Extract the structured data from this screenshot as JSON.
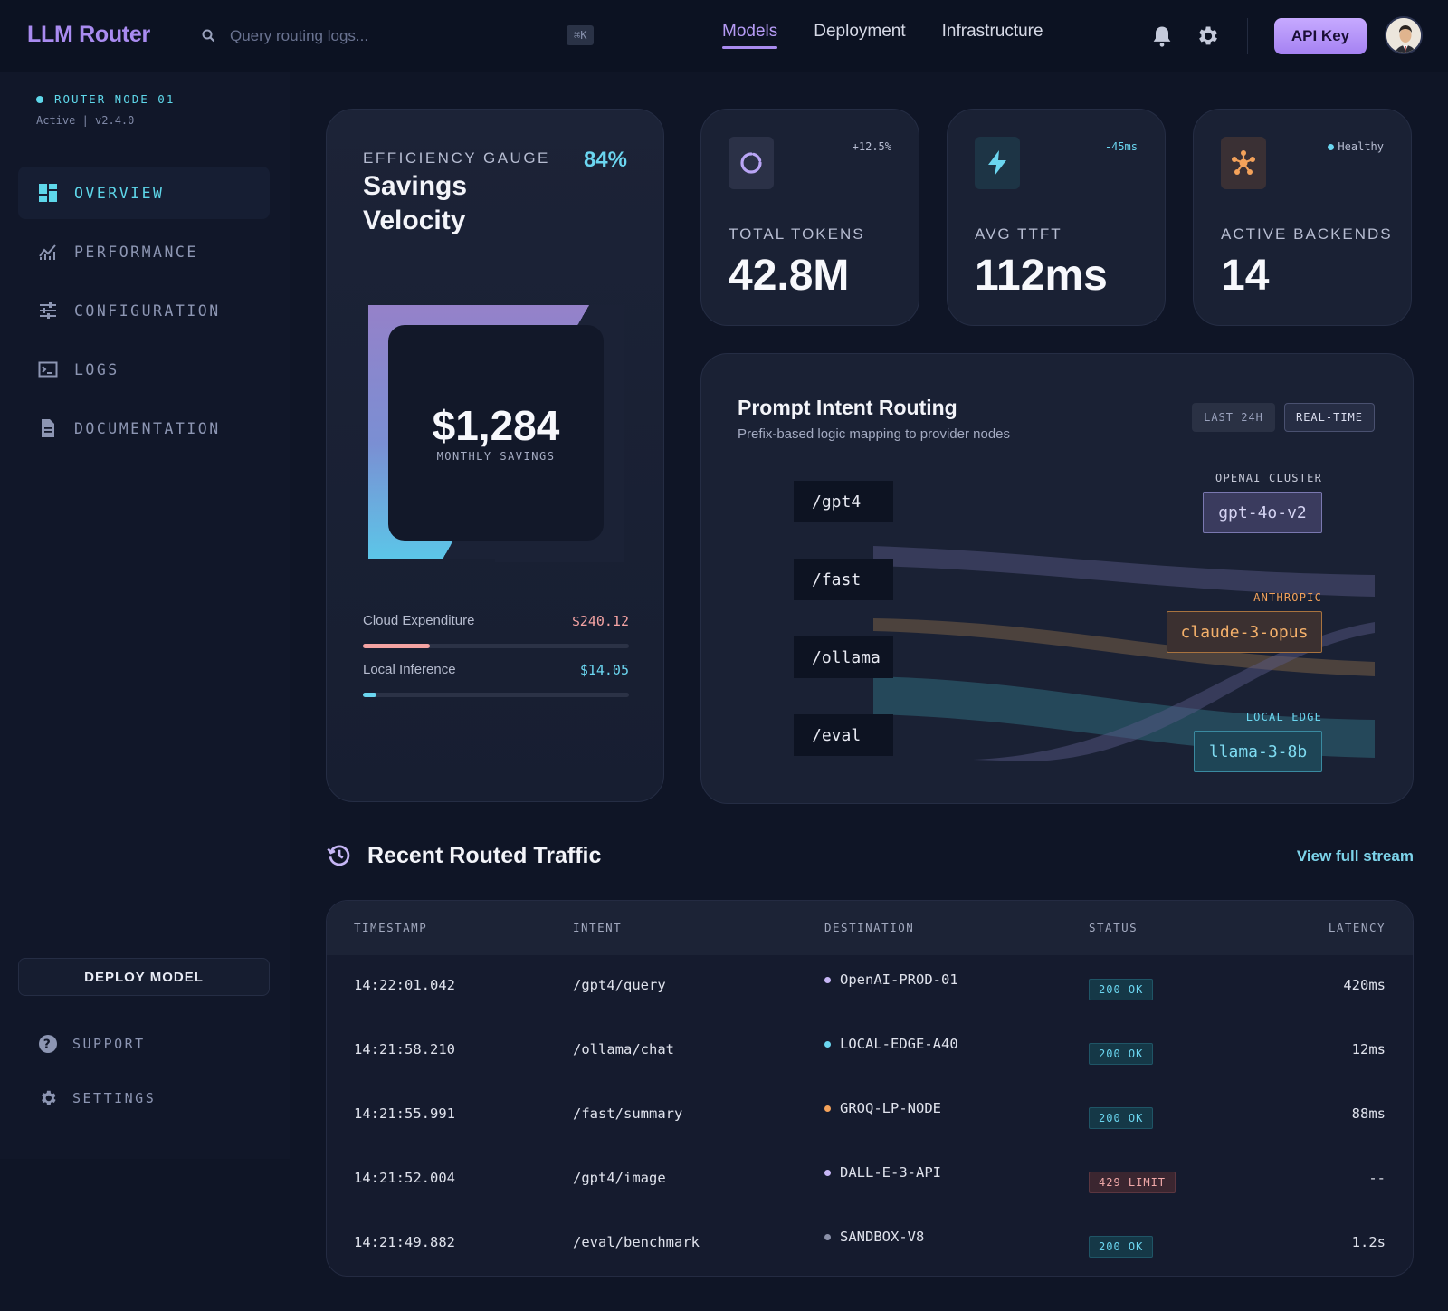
{
  "header": {
    "brand": "LLM Router",
    "search_placeholder": "Query routing logs...",
    "shortcut": "⌘K",
    "nav": [
      "Models",
      "Deployment",
      "Infrastructure"
    ],
    "active_nav": "Models",
    "api_button": "API Key",
    "icons": [
      "search-icon",
      "bell-icon",
      "gear-icon",
      "avatar"
    ]
  },
  "sidebar": {
    "node_title": "ROUTER NODE 01",
    "node_status": "Active | v2.4.0",
    "items": [
      {
        "label": "OVERVIEW",
        "icon": "dashboard-icon",
        "active": true
      },
      {
        "label": "PERFORMANCE",
        "icon": "chart-icon",
        "active": false
      },
      {
        "label": "CONFIGURATION",
        "icon": "sliders-icon",
        "active": false
      },
      {
        "label": "LOGS",
        "icon": "terminal-icon",
        "active": false
      },
      {
        "label": "DOCUMENTATION",
        "icon": "document-icon",
        "active": false
      }
    ],
    "deploy_button": "DEPLOY MODEL",
    "support": "SUPPORT",
    "settings": "SETTINGS"
  },
  "efficiency": {
    "label": "EFFICIENCY GAUGE",
    "title": "Savings Velocity",
    "percent": "84%",
    "gauge_level": 0.84,
    "savings": "$1,284",
    "savings_label": "MONTHLY SAVINGS",
    "rows": [
      {
        "label": "Cloud Expenditure",
        "value": "$240.12",
        "fraction": 0.25,
        "color": "#f4a3a3"
      },
      {
        "label": "Local Inference",
        "value": "$14.05",
        "fraction": 0.05,
        "color": "#6bd6f0"
      }
    ]
  },
  "stats": [
    {
      "label": "TOTAL TOKENS",
      "value": "42.8M",
      "delta": "+12.5%",
      "icon": "spinner-icon",
      "accent": "#b9a5f5"
    },
    {
      "label": "AVG TTFT",
      "value": "112ms",
      "delta": "-45ms",
      "icon": "lightning-icon",
      "accent": "#6bd6f0"
    },
    {
      "label": "ACTIVE BACKENDS",
      "value": "14",
      "delta": "Healthy",
      "icon": "hub-icon",
      "accent": "#f4a25a"
    }
  ],
  "routing": {
    "title": "Prompt Intent Routing",
    "subtitle": "Prefix-based logic mapping to provider nodes",
    "pills": [
      "LAST 24H",
      "REAL-TIME"
    ],
    "prefixes": [
      "/gpt4",
      "/fast",
      "/ollama",
      "/eval"
    ],
    "destinations": [
      {
        "group": "OPENAI CLUSTER",
        "name": "gpt-4o-v2",
        "color": "#c6b6f5"
      },
      {
        "group": "ANTHROPIC",
        "name": "claude-3-opus",
        "color": "#f4a25a"
      },
      {
        "group": "LOCAL EDGE",
        "name": "llama-3-8b",
        "color": "#6bd6f0"
      }
    ]
  },
  "traffic": {
    "title": "Recent Routed Traffic",
    "link": "View full stream",
    "columns": [
      "TIMESTAMP",
      "INTENT",
      "DESTINATION",
      "STATUS",
      "LATENCY"
    ],
    "rows": [
      {
        "timestamp": "14:22:01.042",
        "intent": "/gpt4/query",
        "destination": "OpenAI-PROD-01",
        "dot": "#c6b6f5",
        "status": "200 OK",
        "kind": "ok",
        "latency": "420ms"
      },
      {
        "timestamp": "14:21:58.210",
        "intent": "/ollama/chat",
        "destination": "LOCAL-EDGE-A40",
        "dot": "#6bd6f0",
        "status": "200 OK",
        "kind": "ok",
        "latency": "12ms"
      },
      {
        "timestamp": "14:21:55.991",
        "intent": "/fast/summary",
        "destination": "GROQ-LP-NODE",
        "dot": "#f4a25a",
        "status": "200 OK",
        "kind": "ok",
        "latency": "88ms"
      },
      {
        "timestamp": "14:21:52.004",
        "intent": "/gpt4/image",
        "destination": "DALL-E-3-API",
        "dot": "#c6b6f5",
        "status": "429 LIMIT",
        "kind": "limit",
        "latency": "--"
      },
      {
        "timestamp": "14:21:49.882",
        "intent": "/eval/benchmark",
        "destination": "SANDBOX-V8",
        "dot": "#8a90a8",
        "status": "200 OK",
        "kind": "ok",
        "latency": "1.2s"
      }
    ]
  }
}
